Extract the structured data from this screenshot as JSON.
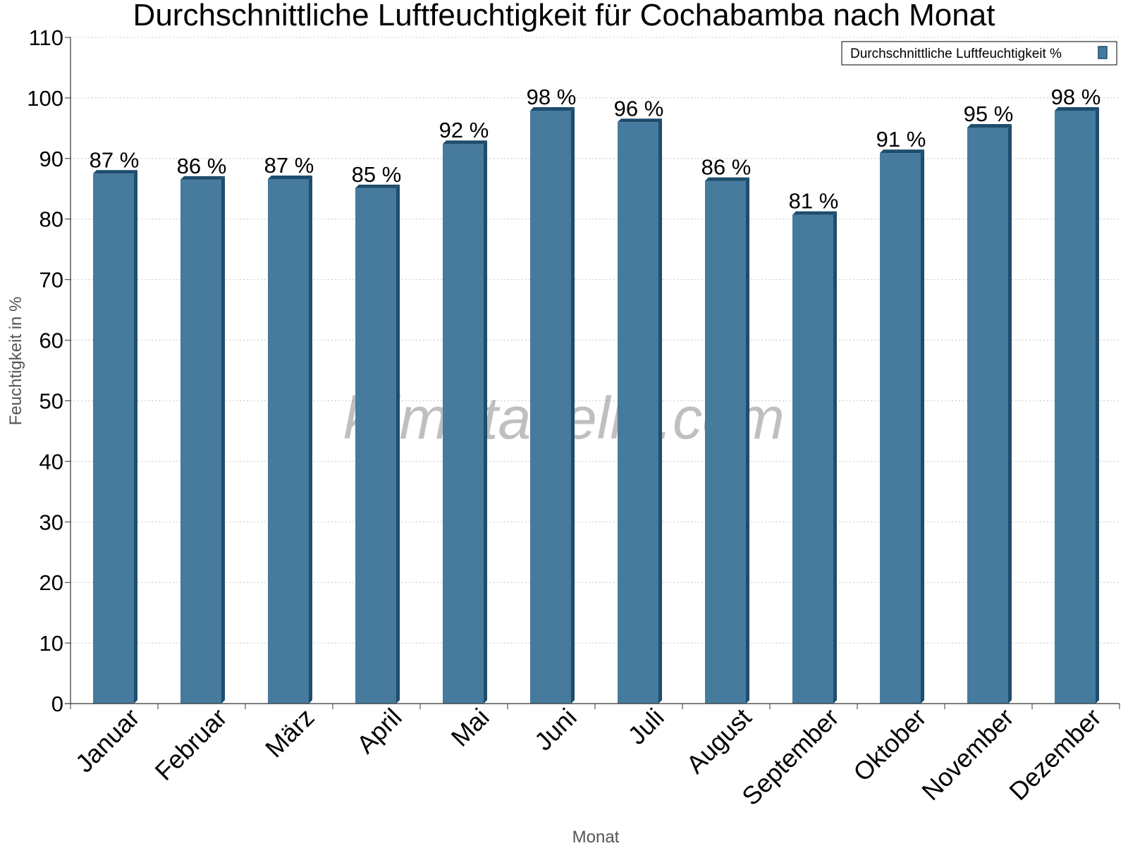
{
  "chart_data": {
    "type": "bar",
    "title": "Durchschnittliche Luftfeuchtigkeit für Cochabamba nach Monat",
    "xlabel": "Monat",
    "ylabel": "Feuchtigkeit in %",
    "ylim": [
      0,
      110
    ],
    "yticks": [
      0,
      10,
      20,
      30,
      40,
      50,
      60,
      70,
      80,
      90,
      100,
      110
    ],
    "grid": true,
    "legend": {
      "position": "top-right"
    },
    "categories": [
      "Januar",
      "Februar",
      "März",
      "April",
      "Mai",
      "Juni",
      "Juli",
      "August",
      "September",
      "Oktober",
      "November",
      "Dezember"
    ],
    "series": [
      {
        "name": "Durchschnittliche Luftfeuchtigkeit %",
        "color": "#467b9d",
        "values": [
          87.5,
          86.5,
          86.6,
          85.1,
          92.4,
          97.9,
          96.0,
          86.3,
          80.7,
          90.9,
          95.1,
          97.9
        ],
        "data_labels": [
          "87 %",
          "86 %",
          "87 %",
          "85 %",
          "92 %",
          "98 %",
          "96 %",
          "86 %",
          "81 %",
          "91 %",
          "95 %",
          "98 %"
        ]
      }
    ]
  },
  "watermark": "klimatabelle.com",
  "colors": {
    "bar_front": "#467b9d",
    "bar_side": "#1e4d6d",
    "bar_top": "#1e4d6d",
    "grid": "#c8c8c8",
    "axis": "#333333"
  }
}
